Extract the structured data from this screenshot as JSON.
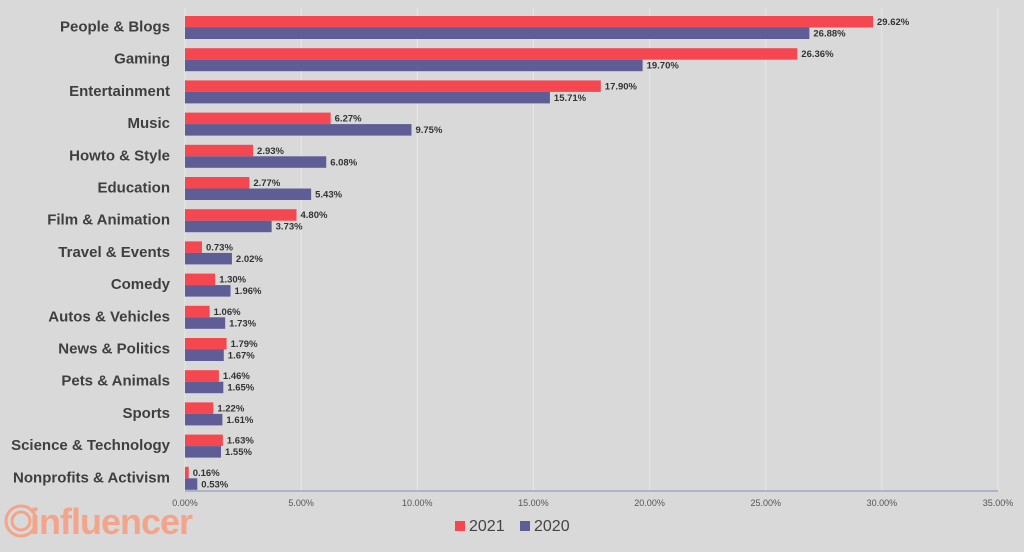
{
  "chart_data": {
    "type": "bar",
    "orientation": "horizontal",
    "categories": [
      "People & Blogs",
      "Gaming",
      "Entertainment",
      "Music",
      "Howto & Style",
      "Education",
      "Film & Animation",
      "Travel & Events",
      "Comedy",
      "Autos & Vehicles",
      "News & Politics",
      "Pets & Animals",
      "Sports",
      "Science & Technology",
      "Nonprofits & Activism"
    ],
    "series": [
      {
        "name": "2021",
        "color": "#f4474f",
        "values": [
          29.62,
          26.36,
          17.9,
          6.27,
          2.93,
          2.77,
          4.8,
          0.73,
          1.3,
          1.06,
          1.79,
          1.46,
          1.22,
          1.63,
          0.16
        ],
        "labels": [
          "29.62%",
          "26.36%",
          "17.90%",
          "6.27%",
          "2.93%",
          "2.77%",
          "4.80%",
          "0.73%",
          "1.30%",
          "1.06%",
          "1.79%",
          "1.46%",
          "1.22%",
          "1.63%",
          "0.16%"
        ]
      },
      {
        "name": "2020",
        "color": "#5e5d96",
        "values": [
          26.88,
          19.7,
          15.71,
          9.75,
          6.08,
          5.43,
          3.73,
          2.02,
          1.96,
          1.73,
          1.67,
          1.65,
          1.61,
          1.55,
          0.53
        ],
        "labels": [
          "26.88%",
          "19.70%",
          "15.71%",
          "9.75%",
          "6.08%",
          "5.43%",
          "3.73%",
          "2.02%",
          "1.96%",
          "1.73%",
          "1.67%",
          "1.65%",
          "1.61%",
          "1.55%",
          "0.53%"
        ]
      }
    ],
    "xlim": [
      0,
      35
    ],
    "xticks": [
      0,
      5,
      10,
      15,
      20,
      25,
      30,
      35
    ],
    "xtick_labels": [
      "0.00%",
      "5.00%",
      "10.00%",
      "15.00%",
      "20.00%",
      "25.00%",
      "30.00%",
      "35.00%"
    ],
    "grid": true,
    "legend_position": "bottom-center",
    "title": "",
    "xlabel": "",
    "ylabel": ""
  },
  "logo": {
    "text": "influencer",
    "color": "#f2a58a"
  }
}
